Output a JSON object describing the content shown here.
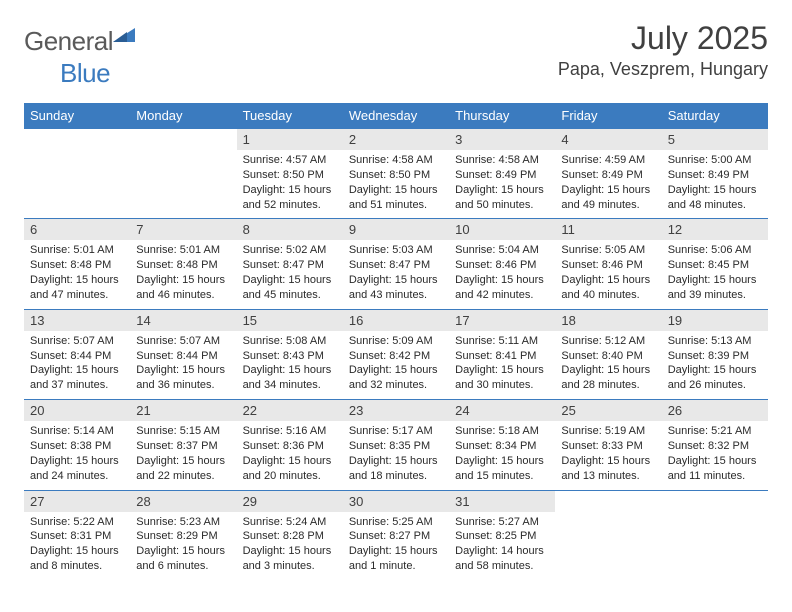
{
  "logo": {
    "text1": "General",
    "text2": "Blue"
  },
  "title": "July 2025",
  "location": "Papa, Veszprem, Hungary",
  "colors": {
    "header_bg": "#3b7bbf",
    "header_text": "#ffffff",
    "daynum_bg": "#e8e8e8",
    "text": "#2a2a2a",
    "title_color": "#404040",
    "row_border": "#3b7bbf"
  },
  "typography": {
    "title_fontsize": 32,
    "location_fontsize": 18,
    "dayheader_fontsize": 13,
    "body_fontsize": 11
  },
  "dayHeaders": [
    "Sunday",
    "Monday",
    "Tuesday",
    "Wednesday",
    "Thursday",
    "Friday",
    "Saturday"
  ],
  "weeks": [
    [
      null,
      null,
      {
        "n": "1",
        "sr": "Sunrise: 4:57 AM",
        "ss": "Sunset: 8:50 PM",
        "dl": "Daylight: 15 hours and 52 minutes."
      },
      {
        "n": "2",
        "sr": "Sunrise: 4:58 AM",
        "ss": "Sunset: 8:50 PM",
        "dl": "Daylight: 15 hours and 51 minutes."
      },
      {
        "n": "3",
        "sr": "Sunrise: 4:58 AM",
        "ss": "Sunset: 8:49 PM",
        "dl": "Daylight: 15 hours and 50 minutes."
      },
      {
        "n": "4",
        "sr": "Sunrise: 4:59 AM",
        "ss": "Sunset: 8:49 PM",
        "dl": "Daylight: 15 hours and 49 minutes."
      },
      {
        "n": "5",
        "sr": "Sunrise: 5:00 AM",
        "ss": "Sunset: 8:49 PM",
        "dl": "Daylight: 15 hours and 48 minutes."
      }
    ],
    [
      {
        "n": "6",
        "sr": "Sunrise: 5:01 AM",
        "ss": "Sunset: 8:48 PM",
        "dl": "Daylight: 15 hours and 47 minutes."
      },
      {
        "n": "7",
        "sr": "Sunrise: 5:01 AM",
        "ss": "Sunset: 8:48 PM",
        "dl": "Daylight: 15 hours and 46 minutes."
      },
      {
        "n": "8",
        "sr": "Sunrise: 5:02 AM",
        "ss": "Sunset: 8:47 PM",
        "dl": "Daylight: 15 hours and 45 minutes."
      },
      {
        "n": "9",
        "sr": "Sunrise: 5:03 AM",
        "ss": "Sunset: 8:47 PM",
        "dl": "Daylight: 15 hours and 43 minutes."
      },
      {
        "n": "10",
        "sr": "Sunrise: 5:04 AM",
        "ss": "Sunset: 8:46 PM",
        "dl": "Daylight: 15 hours and 42 minutes."
      },
      {
        "n": "11",
        "sr": "Sunrise: 5:05 AM",
        "ss": "Sunset: 8:46 PM",
        "dl": "Daylight: 15 hours and 40 minutes."
      },
      {
        "n": "12",
        "sr": "Sunrise: 5:06 AM",
        "ss": "Sunset: 8:45 PM",
        "dl": "Daylight: 15 hours and 39 minutes."
      }
    ],
    [
      {
        "n": "13",
        "sr": "Sunrise: 5:07 AM",
        "ss": "Sunset: 8:44 PM",
        "dl": "Daylight: 15 hours and 37 minutes."
      },
      {
        "n": "14",
        "sr": "Sunrise: 5:07 AM",
        "ss": "Sunset: 8:44 PM",
        "dl": "Daylight: 15 hours and 36 minutes."
      },
      {
        "n": "15",
        "sr": "Sunrise: 5:08 AM",
        "ss": "Sunset: 8:43 PM",
        "dl": "Daylight: 15 hours and 34 minutes."
      },
      {
        "n": "16",
        "sr": "Sunrise: 5:09 AM",
        "ss": "Sunset: 8:42 PM",
        "dl": "Daylight: 15 hours and 32 minutes."
      },
      {
        "n": "17",
        "sr": "Sunrise: 5:11 AM",
        "ss": "Sunset: 8:41 PM",
        "dl": "Daylight: 15 hours and 30 minutes."
      },
      {
        "n": "18",
        "sr": "Sunrise: 5:12 AM",
        "ss": "Sunset: 8:40 PM",
        "dl": "Daylight: 15 hours and 28 minutes."
      },
      {
        "n": "19",
        "sr": "Sunrise: 5:13 AM",
        "ss": "Sunset: 8:39 PM",
        "dl": "Daylight: 15 hours and 26 minutes."
      }
    ],
    [
      {
        "n": "20",
        "sr": "Sunrise: 5:14 AM",
        "ss": "Sunset: 8:38 PM",
        "dl": "Daylight: 15 hours and 24 minutes."
      },
      {
        "n": "21",
        "sr": "Sunrise: 5:15 AM",
        "ss": "Sunset: 8:37 PM",
        "dl": "Daylight: 15 hours and 22 minutes."
      },
      {
        "n": "22",
        "sr": "Sunrise: 5:16 AM",
        "ss": "Sunset: 8:36 PM",
        "dl": "Daylight: 15 hours and 20 minutes."
      },
      {
        "n": "23",
        "sr": "Sunrise: 5:17 AM",
        "ss": "Sunset: 8:35 PM",
        "dl": "Daylight: 15 hours and 18 minutes."
      },
      {
        "n": "24",
        "sr": "Sunrise: 5:18 AM",
        "ss": "Sunset: 8:34 PM",
        "dl": "Daylight: 15 hours and 15 minutes."
      },
      {
        "n": "25",
        "sr": "Sunrise: 5:19 AM",
        "ss": "Sunset: 8:33 PM",
        "dl": "Daylight: 15 hours and 13 minutes."
      },
      {
        "n": "26",
        "sr": "Sunrise: 5:21 AM",
        "ss": "Sunset: 8:32 PM",
        "dl": "Daylight: 15 hours and 11 minutes."
      }
    ],
    [
      {
        "n": "27",
        "sr": "Sunrise: 5:22 AM",
        "ss": "Sunset: 8:31 PM",
        "dl": "Daylight: 15 hours and 8 minutes."
      },
      {
        "n": "28",
        "sr": "Sunrise: 5:23 AM",
        "ss": "Sunset: 8:29 PM",
        "dl": "Daylight: 15 hours and 6 minutes."
      },
      {
        "n": "29",
        "sr": "Sunrise: 5:24 AM",
        "ss": "Sunset: 8:28 PM",
        "dl": "Daylight: 15 hours and 3 minutes."
      },
      {
        "n": "30",
        "sr": "Sunrise: 5:25 AM",
        "ss": "Sunset: 8:27 PM",
        "dl": "Daylight: 15 hours and 1 minute."
      },
      {
        "n": "31",
        "sr": "Sunrise: 5:27 AM",
        "ss": "Sunset: 8:25 PM",
        "dl": "Daylight: 14 hours and 58 minutes."
      },
      null,
      null
    ]
  ]
}
